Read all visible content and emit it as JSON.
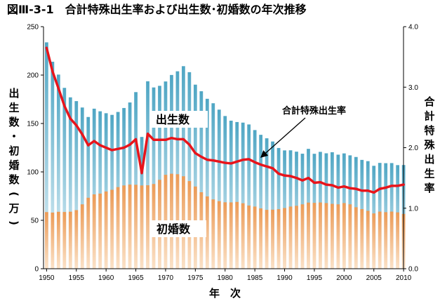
{
  "chart_data": {
    "type": "bar",
    "title": "図Ⅲ-3-1　合計特殊出生率および出生数･初婚数の年次推移",
    "xlabel": "年　次",
    "ylabel_left": "出生数・初婚数(万)",
    "ylabel_right": "合計特殊出生率",
    "ylim_left": [
      0,
      250
    ],
    "ylim_right": [
      0.0,
      4.0
    ],
    "yticks_left": [
      "0",
      "50",
      "100",
      "150",
      "200",
      "250"
    ],
    "yticks_right": [
      "0.0",
      "1.0",
      "2.0",
      "3.0",
      "4.0"
    ],
    "xticks": [
      "1950",
      "1955",
      "1960",
      "1965",
      "1970",
      "1975",
      "1980",
      "1985",
      "1990",
      "1995",
      "2000",
      "2005",
      "2010"
    ],
    "x": [
      1950,
      1951,
      1952,
      1953,
      1954,
      1955,
      1956,
      1957,
      1958,
      1959,
      1960,
      1961,
      1962,
      1963,
      1964,
      1965,
      1966,
      1967,
      1968,
      1969,
      1970,
      1971,
      1972,
      1973,
      1974,
      1975,
      1976,
      1977,
      1978,
      1979,
      1980,
      1981,
      1982,
      1983,
      1984,
      1985,
      1986,
      1987,
      1988,
      1989,
      1990,
      1991,
      1992,
      1993,
      1994,
      1995,
      1996,
      1997,
      1998,
      1999,
      2000,
      2001,
      2002,
      2003,
      2004,
      2005,
      2006,
      2007,
      2008,
      2009,
      2010
    ],
    "series": [
      {
        "name": "出生数",
        "kind": "bar",
        "axis": "left",
        "color": "#4fa6c4",
        "values": [
          233.8,
          213.8,
          200.5,
          186.8,
          177.0,
          173.1,
          166.5,
          156.7,
          165.3,
          162.6,
          160.6,
          158.9,
          161.9,
          166.0,
          171.7,
          182.4,
          136.1,
          193.6,
          187.2,
          188.9,
          193.4,
          200.1,
          203.9,
          209.2,
          203.0,
          190.1,
          183.3,
          175.5,
          170.9,
          164.3,
          157.7,
          152.9,
          151.5,
          150.9,
          149.0,
          143.2,
          138.3,
          134.7,
          131.4,
          124.7,
          122.2,
          122.3,
          120.9,
          118.8,
          123.8,
          118.7,
          120.7,
          119.2,
          120.3,
          117.8,
          119.1,
          117.1,
          115.4,
          112.4,
          111.1,
          106.3,
          109.3,
          109.0,
          109.1,
          107.0,
          107.1
        ]
      },
      {
        "name": "初婚数",
        "kind": "bar",
        "axis": "left",
        "color": "#f0a868",
        "values": [
          58.5,
          58.0,
          58.8,
          58.6,
          58.9,
          60.5,
          66.5,
          73.3,
          76.8,
          77.6,
          79.8,
          81.5,
          84.3,
          86.0,
          86.9,
          86.7,
          86.0,
          86.2,
          87.5,
          91.8,
          97.0,
          98.1,
          97.6,
          95.5,
          90.5,
          84.9,
          79.0,
          74.7,
          71.6,
          69.8,
          68.6,
          68.5,
          69.0,
          67.6,
          65.3,
          64.2,
          62.3,
          60.8,
          61.0,
          61.5,
          62.7,
          64.2,
          65.0,
          66.5,
          68.3,
          68.0,
          68.4,
          67.8,
          67.0,
          66.5,
          67.8,
          66.5,
          63.5,
          61.6,
          59.8,
          57.1,
          59.0,
          58.4,
          59.0,
          58.2,
          56.6
        ]
      },
      {
        "name": "合計特殊出生率",
        "kind": "line",
        "axis": "right",
        "color": "#e8141b",
        "values": [
          3.65,
          3.26,
          2.98,
          2.69,
          2.48,
          2.37,
          2.22,
          2.04,
          2.11,
          2.04,
          2.0,
          1.96,
          1.98,
          2.0,
          2.05,
          2.14,
          1.58,
          2.23,
          2.13,
          2.13,
          2.13,
          2.16,
          2.14,
          2.14,
          2.05,
          1.91,
          1.85,
          1.8,
          1.79,
          1.77,
          1.75,
          1.74,
          1.77,
          1.8,
          1.81,
          1.76,
          1.72,
          1.69,
          1.66,
          1.57,
          1.54,
          1.53,
          1.5,
          1.46,
          1.5,
          1.42,
          1.43,
          1.39,
          1.38,
          1.34,
          1.36,
          1.33,
          1.32,
          1.29,
          1.29,
          1.26,
          1.32,
          1.34,
          1.37,
          1.37,
          1.39
        ]
      }
    ],
    "annotations": {
      "births": "出生数",
      "marriages": "初婚数",
      "tfr": "合計特殊出生率"
    },
    "grid": false,
    "legend": "none"
  }
}
